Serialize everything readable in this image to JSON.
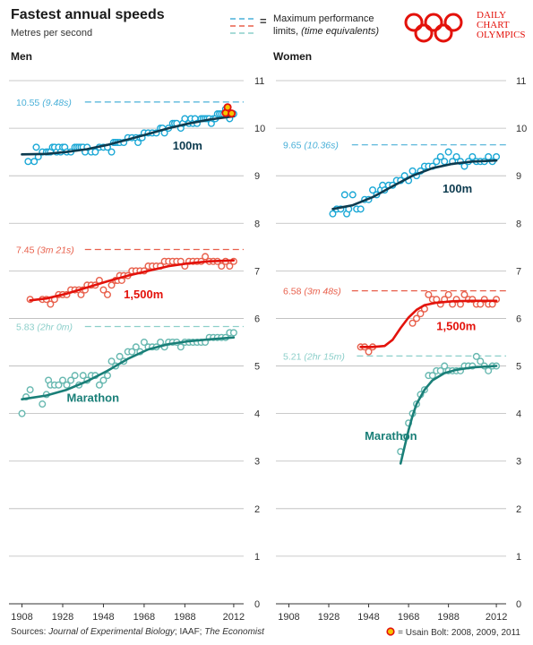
{
  "header": {
    "title": "Fastest annual speeds",
    "subtitle": "Metres per second",
    "legend_line1": "Maximum performance",
    "legend_line2": "limits,",
    "legend_line2_italic": "(time equivalents)",
    "legend_eq": "=",
    "brand_lines": [
      "Daily",
      "Chart",
      "Olympics"
    ]
  },
  "colors": {
    "sprint": "#1ba8d6",
    "middle": "#e8604c",
    "marathon": "#67b8b0",
    "sprint_fit": "#0d3b4f",
    "middle_fit": "#e3120b",
    "marathon_fit": "#1a7f78",
    "limit_blue": "#4ab0d8",
    "limit_red": "#e8604c",
    "limit_teal": "#8ccfca",
    "brand": "#e3120b",
    "bolt_fill": "#f5c400",
    "bolt_stroke": "#e3120b"
  },
  "footer": {
    "sources_prefix": "Sources: ",
    "sources_italic1": "Journal of Experimental Biology",
    "sources_mid": "; IAAF; ",
    "sources_italic2": "The Economist",
    "bolt_note": "= Usain Bolt: 2008, 2009, 2011"
  },
  "chart_data": [
    {
      "type": "scatter",
      "panel": "Men",
      "ylim": [
        0,
        11
      ],
      "yticks": [
        0,
        1,
        2,
        3,
        4,
        5,
        6,
        7,
        8,
        9,
        10,
        11
      ],
      "xlim": [
        1906,
        2016
      ],
      "xticks": [
        1908,
        1928,
        1948,
        1968,
        1988,
        2012
      ],
      "limits": [
        {
          "event": "100m",
          "value": 10.55,
          "label": "10.55",
          "time": "(9.48s)",
          "color": "limit_blue"
        },
        {
          "event": "1,500m",
          "value": 7.45,
          "label": "7.45",
          "time": "(3m 21s)",
          "color": "limit_red"
        },
        {
          "event": "Marathon",
          "value": 5.83,
          "label": "5.83",
          "time": "(2hr 0m)",
          "color": "limit_teal"
        }
      ],
      "series": [
        {
          "name": "100m",
          "color": "sprint",
          "fit_color": "sprint_fit",
          "label_at": [
            1982,
            9.55
          ],
          "x": [
            1911,
            1914,
            1915,
            1916,
            1918,
            1920,
            1921,
            1922,
            1923,
            1924,
            1925,
            1926,
            1927,
            1928,
            1929,
            1930,
            1932,
            1934,
            1935,
            1936,
            1937,
            1938,
            1939,
            1940,
            1942,
            1944,
            1946,
            1948,
            1950,
            1952,
            1953,
            1954,
            1955,
            1956,
            1958,
            1960,
            1962,
            1964,
            1965,
            1966,
            1967,
            1968,
            1970,
            1972,
            1974,
            1976,
            1977,
            1978,
            1980,
            1982,
            1983,
            1984,
            1986,
            1987,
            1988,
            1990,
            1991,
            1992,
            1993,
            1994,
            1996,
            1997,
            1998,
            1999,
            2000,
            2001,
            2002,
            2003,
            2004,
            2005,
            2006,
            2007,
            2008,
            2009,
            2010,
            2011,
            2012
          ],
          "y": [
            9.3,
            9.3,
            9.6,
            9.4,
            9.5,
            9.5,
            9.5,
            9.5,
            9.6,
            9.6,
            9.5,
            9.6,
            9.5,
            9.6,
            9.6,
            9.5,
            9.5,
            9.6,
            9.6,
            9.6,
            9.6,
            9.6,
            9.5,
            9.6,
            9.5,
            9.5,
            9.6,
            9.6,
            9.6,
            9.5,
            9.7,
            9.7,
            9.7,
            9.7,
            9.7,
            9.8,
            9.8,
            9.8,
            9.7,
            9.8,
            9.8,
            9.9,
            9.9,
            9.9,
            9.9,
            10.0,
            10.0,
            9.9,
            10.0,
            10.1,
            10.1,
            10.1,
            10.0,
            10.1,
            10.2,
            10.1,
            10.2,
            10.1,
            10.2,
            10.1,
            10.2,
            10.2,
            10.2,
            10.2,
            10.2,
            10.1,
            10.2,
            10.2,
            10.3,
            10.3,
            10.3,
            10.3,
            10.4,
            10.4,
            10.2,
            10.3,
            10.3
          ],
          "fit_x": [
            1908,
            1920,
            1930,
            1940,
            1950,
            1960,
            1970,
            1980,
            1990,
            2000,
            2012
          ],
          "fit_y": [
            9.45,
            9.46,
            9.5,
            9.56,
            9.65,
            9.76,
            9.88,
            10.0,
            10.1,
            10.18,
            10.25
          ]
        },
        {
          "name": "1,500m",
          "color": "middle",
          "fit_color": "middle_fit",
          "label_at": [
            1958,
            6.42
          ],
          "x": [
            1912,
            1918,
            1920,
            1922,
            1924,
            1926,
            1928,
            1930,
            1932,
            1934,
            1936,
            1937,
            1938,
            1939,
            1940,
            1942,
            1944,
            1946,
            1948,
            1950,
            1952,
            1954,
            1955,
            1956,
            1957,
            1958,
            1960,
            1962,
            1964,
            1966,
            1968,
            1970,
            1972,
            1974,
            1976,
            1978,
            1980,
            1982,
            1984,
            1986,
            1988,
            1990,
            1992,
            1994,
            1996,
            1998,
            2000,
            2002,
            2004,
            2006,
            2008,
            2010,
            2012
          ],
          "y": [
            6.4,
            6.4,
            6.4,
            6.3,
            6.4,
            6.5,
            6.5,
            6.5,
            6.6,
            6.6,
            6.6,
            6.5,
            6.6,
            6.6,
            6.7,
            6.7,
            6.7,
            6.8,
            6.6,
            6.5,
            6.7,
            6.8,
            6.8,
            6.9,
            6.8,
            6.9,
            6.9,
            7.0,
            7.0,
            7.0,
            7.0,
            7.1,
            7.1,
            7.1,
            7.1,
            7.2,
            7.2,
            7.2,
            7.2,
            7.2,
            7.1,
            7.2,
            7.2,
            7.2,
            7.2,
            7.3,
            7.2,
            7.2,
            7.2,
            7.1,
            7.2,
            7.1,
            7.2
          ],
          "fit_x": [
            1912,
            1920,
            1930,
            1940,
            1950,
            1960,
            1970,
            1980,
            1990,
            2000,
            2012
          ],
          "fit_y": [
            6.38,
            6.42,
            6.52,
            6.65,
            6.78,
            6.9,
            7.0,
            7.1,
            7.16,
            7.2,
            7.22
          ]
        },
        {
          "name": "Marathon",
          "color": "marathon",
          "fit_color": "marathon_fit",
          "label_at": [
            1930,
            4.25
          ],
          "x": [
            1908,
            1910,
            1912,
            1918,
            1920,
            1921,
            1922,
            1924,
            1926,
            1928,
            1930,
            1932,
            1934,
            1936,
            1938,
            1940,
            1942,
            1944,
            1946,
            1948,
            1950,
            1952,
            1954,
            1956,
            1958,
            1960,
            1962,
            1964,
            1966,
            1968,
            1970,
            1972,
            1974,
            1976,
            1978,
            1980,
            1982,
            1984,
            1986,
            1988,
            1990,
            1992,
            1994,
            1996,
            1998,
            2000,
            2002,
            2004,
            2006,
            2008,
            2010,
            2012
          ],
          "y": [
            4.0,
            4.35,
            4.5,
            4.2,
            4.4,
            4.7,
            4.6,
            4.6,
            4.6,
            4.7,
            4.6,
            4.7,
            4.8,
            4.6,
            4.8,
            4.7,
            4.8,
            4.8,
            4.6,
            4.7,
            4.8,
            5.1,
            5.0,
            5.2,
            5.1,
            5.3,
            5.3,
            5.4,
            5.3,
            5.5,
            5.4,
            5.4,
            5.4,
            5.5,
            5.4,
            5.5,
            5.5,
            5.5,
            5.4,
            5.5,
            5.5,
            5.5,
            5.5,
            5.5,
            5.5,
            5.6,
            5.6,
            5.6,
            5.6,
            5.6,
            5.7,
            5.7
          ],
          "fit_x": [
            1908,
            1920,
            1930,
            1940,
            1950,
            1960,
            1970,
            1980,
            1990,
            2000,
            2012
          ],
          "fit_y": [
            4.3,
            4.38,
            4.5,
            4.68,
            4.9,
            5.15,
            5.35,
            5.46,
            5.52,
            5.56,
            5.6
          ]
        }
      ],
      "bolt": [
        [
          2008,
          10.32
        ],
        [
          2009,
          10.44
        ],
        [
          2011,
          10.31
        ]
      ]
    },
    {
      "type": "scatter",
      "panel": "Women",
      "ylim": [
        0,
        11
      ],
      "yticks": [
        0,
        1,
        2,
        3,
        4,
        5,
        6,
        7,
        8,
        9,
        10,
        11
      ],
      "xlim": [
        1906,
        2016
      ],
      "xticks": [
        1908,
        1928,
        1948,
        1968,
        1988,
        2012
      ],
      "limits": [
        {
          "event": "100m",
          "value": 9.65,
          "label": "9.65",
          "time": "(10.36s)",
          "color": "limit_blue"
        },
        {
          "event": "1,500m",
          "value": 6.58,
          "label": "6.58",
          "time": "(3m 48s)",
          "color": "limit_red"
        },
        {
          "event": "Marathon",
          "value": 5.21,
          "label": "5.21",
          "time": "(2hr 15m)",
          "color": "limit_teal"
        }
      ],
      "series": [
        {
          "name": "100m",
          "color": "sprint",
          "fit_color": "sprint_fit",
          "label_at": [
            1985,
            8.65
          ],
          "x": [
            1930,
            1932,
            1934,
            1936,
            1937,
            1938,
            1940,
            1942,
            1944,
            1946,
            1948,
            1950,
            1952,
            1954,
            1955,
            1956,
            1958,
            1960,
            1962,
            1964,
            1966,
            1968,
            1970,
            1972,
            1974,
            1976,
            1978,
            1980,
            1982,
            1984,
            1986,
            1988,
            1990,
            1992,
            1994,
            1996,
            1998,
            2000,
            2002,
            2004,
            2006,
            2008,
            2010,
            2012
          ],
          "y": [
            8.2,
            8.3,
            8.3,
            8.6,
            8.2,
            8.3,
            8.6,
            8.3,
            8.3,
            8.5,
            8.5,
            8.7,
            8.6,
            8.7,
            8.8,
            8.7,
            8.8,
            8.8,
            8.9,
            8.9,
            9.0,
            8.9,
            9.1,
            9.0,
            9.1,
            9.2,
            9.2,
            9.2,
            9.3,
            9.4,
            9.3,
            9.5,
            9.3,
            9.4,
            9.3,
            9.2,
            9.3,
            9.4,
            9.3,
            9.3,
            9.3,
            9.4,
            9.3,
            9.4
          ],
          "fit_x": [
            1930,
            1940,
            1950,
            1960,
            1970,
            1980,
            1990,
            2000,
            2012
          ],
          "fit_y": [
            8.3,
            8.38,
            8.55,
            8.78,
            9.0,
            9.16,
            9.25,
            9.3,
            9.32
          ]
        },
        {
          "name": "1,500m",
          "color": "middle",
          "fit_color": "middle_fit",
          "label_at": [
            1982,
            5.75
          ],
          "x": [
            1944,
            1946,
            1948,
            1950,
            1970,
            1972,
            1974,
            1976,
            1978,
            1980,
            1982,
            1984,
            1986,
            1988,
            1990,
            1992,
            1994,
            1996,
            1998,
            2000,
            2002,
            2004,
            2006,
            2008,
            2010,
            2012
          ],
          "y": [
            5.4,
            5.4,
            5.3,
            5.4,
            5.9,
            6.0,
            6.1,
            6.2,
            6.5,
            6.4,
            6.4,
            6.3,
            6.4,
            6.5,
            6.3,
            6.4,
            6.3,
            6.5,
            6.4,
            6.4,
            6.3,
            6.3,
            6.4,
            6.3,
            6.3,
            6.4
          ],
          "fit_x": [
            1944,
            1950,
            1956,
            1960,
            1964,
            1968,
            1972,
            1976,
            1982,
            1990,
            2000,
            2012
          ],
          "fit_y": [
            5.4,
            5.4,
            5.42,
            5.55,
            5.8,
            6.02,
            6.18,
            6.28,
            6.33,
            6.36,
            6.37,
            6.37
          ],
          "fit_start": 1944
        },
        {
          "name": "Marathon",
          "color": "marathon",
          "fit_color": "marathon_fit",
          "label_at": [
            1946,
            3.45
          ],
          "x": [
            1964,
            1966,
            1968,
            1970,
            1972,
            1974,
            1976,
            1978,
            1980,
            1982,
            1984,
            1986,
            1988,
            1990,
            1992,
            1994,
            1996,
            1998,
            2000,
            2002,
            2004,
            2006,
            2008,
            2010,
            2012
          ],
          "y": [
            3.2,
            3.5,
            3.8,
            4.0,
            4.2,
            4.4,
            4.5,
            4.8,
            4.8,
            4.9,
            4.9,
            5.0,
            4.9,
            4.9,
            4.9,
            4.9,
            5.0,
            5.0,
            5.0,
            5.2,
            5.1,
            5.0,
            4.9,
            5.0,
            5.0
          ],
          "fit_x": [
            1964,
            1966,
            1968,
            1970,
            1972,
            1976,
            1980,
            1986,
            1992,
            2000,
            2012
          ],
          "fit_y": [
            2.95,
            3.3,
            3.65,
            3.95,
            4.2,
            4.5,
            4.7,
            4.85,
            4.92,
            4.97,
            5.0
          ]
        }
      ]
    }
  ]
}
